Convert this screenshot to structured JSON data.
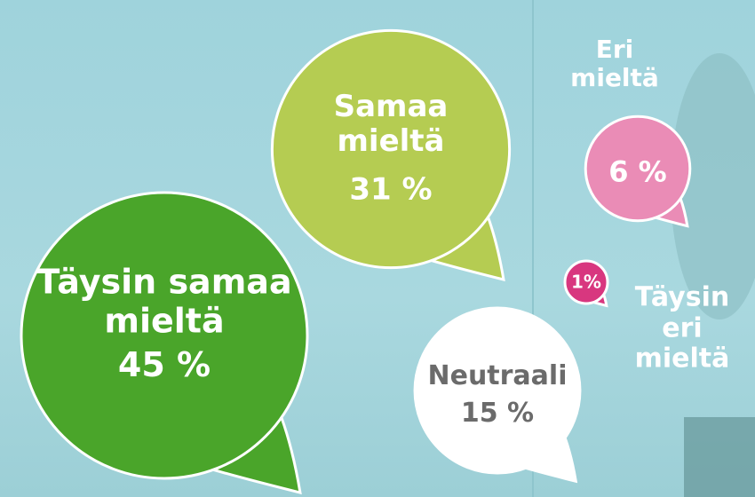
{
  "chart_data": {
    "type": "bubble",
    "categories": [
      "Täysin samaa mieltä",
      "Samaa mieltä",
      "Neutraali",
      "Eri mieltä",
      "Täysin eri mieltä"
    ],
    "values": [
      45,
      31,
      15,
      6,
      1
    ],
    "value_labels": [
      "45 %",
      "31 %",
      "15 %",
      "6 %",
      "1%"
    ],
    "colors": [
      "#4aa52a",
      "#b5cc52",
      "#ffffff",
      "#ea8cb6",
      "#d8377f"
    ]
  }
}
